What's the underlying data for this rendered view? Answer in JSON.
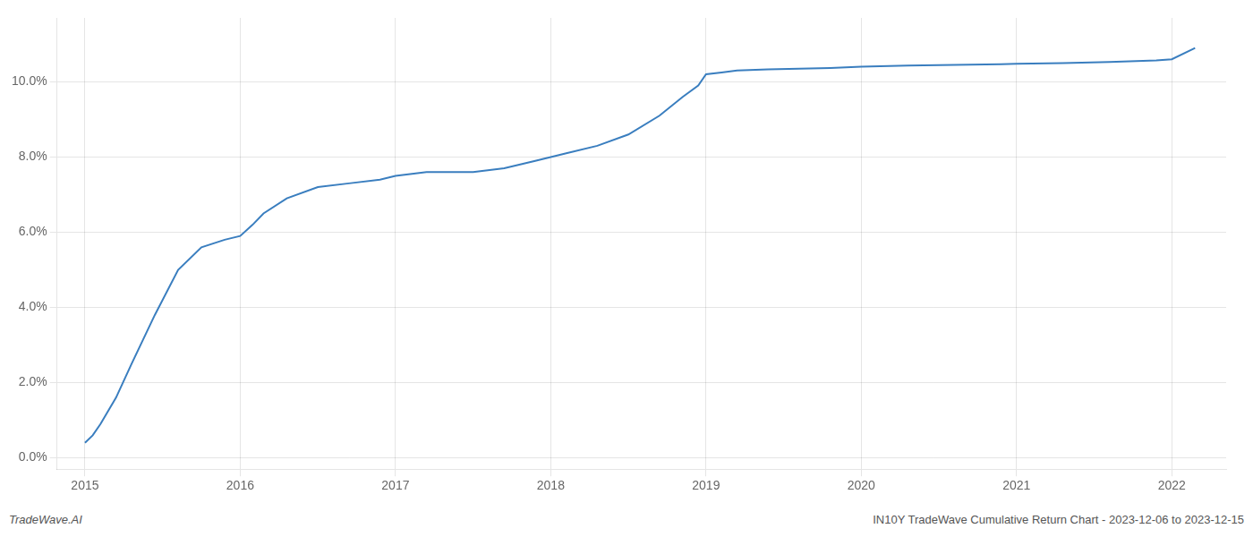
{
  "chart_data": {
    "type": "line",
    "x": [
      2015.0,
      2015.05,
      2015.1,
      2015.2,
      2015.3,
      2015.45,
      2015.6,
      2015.75,
      2015.9,
      2016.0,
      2016.08,
      2016.15,
      2016.3,
      2016.5,
      2016.7,
      2016.9,
      2017.0,
      2017.2,
      2017.5,
      2017.7,
      2017.9,
      2018.0,
      2018.1,
      2018.3,
      2018.5,
      2018.7,
      2018.85,
      2018.95,
      2019.0,
      2019.1,
      2019.2,
      2019.4,
      2019.6,
      2019.8,
      2020.0,
      2020.3,
      2020.6,
      2020.9,
      2021.0,
      2021.3,
      2021.6,
      2021.9,
      2022.0,
      2022.15
    ],
    "values": [
      0.004,
      0.006,
      0.009,
      0.016,
      0.025,
      0.038,
      0.05,
      0.056,
      0.058,
      0.059,
      0.062,
      0.065,
      0.069,
      0.072,
      0.073,
      0.074,
      0.075,
      0.076,
      0.076,
      0.077,
      0.079,
      0.08,
      0.081,
      0.083,
      0.086,
      0.091,
      0.096,
      0.099,
      0.102,
      0.1025,
      0.103,
      0.1033,
      0.1035,
      0.1037,
      0.104,
      0.1043,
      0.1045,
      0.1047,
      0.1048,
      0.105,
      0.1053,
      0.1057,
      0.106,
      0.109
    ],
    "color": "#3a7ebf",
    "xlim": [
      2014.82,
      2022.35
    ],
    "xticks": [
      2015,
      2016,
      2017,
      2018,
      2019,
      2020,
      2021,
      2022
    ],
    "ylim": [
      -0.003,
      0.117
    ],
    "yticks": [
      {
        "value": 0.0,
        "label": "0.0%"
      },
      {
        "value": 0.02,
        "label": "2.0%"
      },
      {
        "value": 0.04,
        "label": "4.0%"
      },
      {
        "value": 0.06,
        "label": "6.0%"
      },
      {
        "value": 0.08,
        "label": "8.0%"
      },
      {
        "value": 0.1,
        "label": "10.0%"
      }
    ],
    "grid": true,
    "annotations": [
      "TradeWave.AI",
      "IN10Y TradeWave Cumulative Return Chart - 2023-12-06 to 2023-12-15"
    ]
  }
}
